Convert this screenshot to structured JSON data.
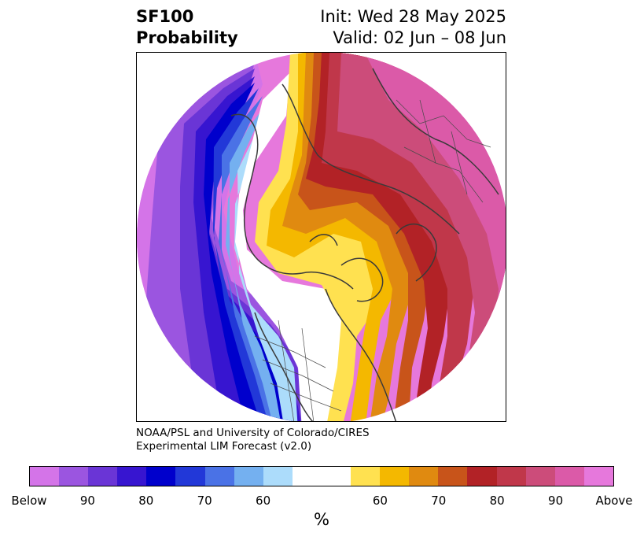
{
  "title": {
    "left_line1": "SF100",
    "left_line2": "Probability",
    "right_line1": "Init: Wed 28 May 2025",
    "right_line2": "Valid: 02 Jun – 08 Jun"
  },
  "credit": {
    "line1": "NOAA/PSL and University of Colorado/CIRES",
    "line2": "Experimental LIM Forecast (v2.0)"
  },
  "colorbar": {
    "colors": [
      "#d474e8",
      "#9b55e0",
      "#6a35d6",
      "#3715d0",
      "#0000cc",
      "#2238d8",
      "#4a72e6",
      "#74b0f0",
      "#acdcfb",
      "#ffffff",
      "#ffffff",
      "#ffe150",
      "#f4b800",
      "#e08a10",
      "#c8541a",
      "#b22226",
      "#c0374a",
      "#cc4c7a",
      "#db5aa8",
      "#e678dc"
    ],
    "labels": [
      "Below",
      "90",
      "80",
      "70",
      "60",
      "60",
      "70",
      "80",
      "90",
      "Above"
    ],
    "unit": "%"
  },
  "map": {
    "projection": "north-polar-stereographic",
    "field": "SF100 probability",
    "region_notes": {
      "above_normal": "Eurasia and eastern North America",
      "below_normal": "North Pacific and western North America"
    }
  }
}
